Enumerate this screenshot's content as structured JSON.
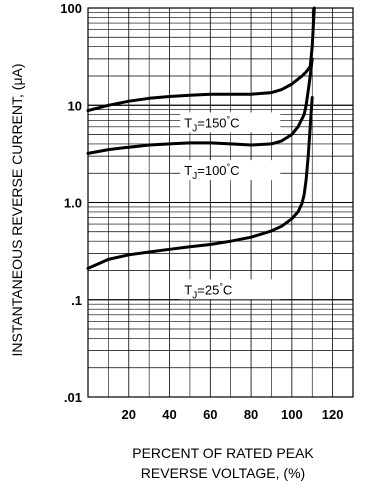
{
  "chart_data": {
    "type": "line",
    "ylabel": "INSTANTANEOUS REVERSE CURRENT, (μA)",
    "xlabel_line1": "PERCENT OF RATED PEAK",
    "xlabel_line2": "REVERSE VOLTAGE, (%)",
    "y_scale": "log",
    "ylim": [
      0.01,
      100
    ],
    "xlim": [
      0,
      130
    ],
    "x_ticks": [
      "20",
      "40",
      "60",
      "80",
      "100",
      "120"
    ],
    "y_ticks": [
      "100",
      "10",
      "1.0",
      ".1",
      ".01"
    ],
    "grid": true,
    "series": [
      {
        "name": "TJ=150°C",
        "label_main": "T",
        "label_sub": "J",
        "label_rest": "=150",
        "label_deg": "°",
        "label_unit": "C",
        "x": [
          0,
          10,
          20,
          30,
          40,
          50,
          60,
          70,
          80,
          90,
          95,
          100,
          105,
          107,
          109,
          110,
          111
        ],
        "y": [
          8.8,
          10.0,
          11.0,
          11.8,
          12.3,
          12.7,
          13.0,
          13.0,
          13.0,
          13.5,
          14.5,
          16.5,
          20.0,
          22.0,
          25.0,
          40,
          100
        ]
      },
      {
        "name": "TJ=100°C",
        "label_main": "T",
        "label_sub": "J",
        "label_rest": "=100",
        "label_deg": "°",
        "label_unit": "C",
        "x": [
          0,
          10,
          20,
          30,
          40,
          50,
          60,
          70,
          80,
          90,
          95,
          100,
          103,
          106,
          107,
          108,
          109,
          110
        ],
        "y": [
          3.2,
          3.5,
          3.7,
          3.9,
          4.0,
          4.1,
          4.1,
          4.0,
          3.9,
          4.0,
          4.3,
          5.0,
          6.0,
          8.0,
          10.0,
          14.0,
          20.0,
          30
        ]
      },
      {
        "name": "TJ=25°C",
        "label_main": "T",
        "label_sub": "J",
        "label_rest": "=25",
        "label_deg": "°",
        "label_unit": "C",
        "x": [
          0,
          10,
          20,
          30,
          40,
          50,
          60,
          70,
          80,
          90,
          95,
          100,
          103,
          105,
          106,
          107,
          108,
          109,
          110
        ],
        "y": [
          0.21,
          0.26,
          0.29,
          0.31,
          0.33,
          0.35,
          0.37,
          0.4,
          0.44,
          0.51,
          0.57,
          0.68,
          0.8,
          0.98,
          1.2,
          1.7,
          3.0,
          6.0,
          12.0
        ]
      }
    ]
  }
}
